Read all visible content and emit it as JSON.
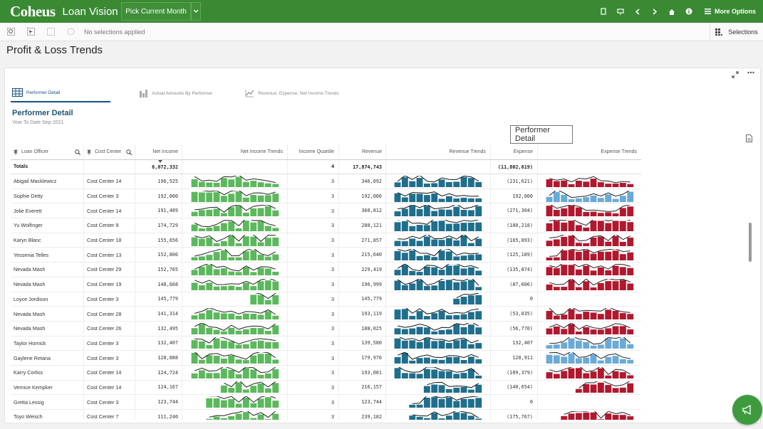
{
  "app": {
    "logo": "Coheus",
    "name": "Loan Vision",
    "pick_button": "Pick Current Month",
    "more_options": "More Options"
  },
  "selections": {
    "status": "No selections applied",
    "label": "Selections"
  },
  "page": {
    "title": "Profit & Loss Trends"
  },
  "tabs": [
    {
      "label": "Performer Detail",
      "active": true
    },
    {
      "label": "Actual Amounts By Performer",
      "active": false
    },
    {
      "label": "Revenue, Expense, Net Income Trends",
      "active": false
    }
  ],
  "section": {
    "title": "Performer Detail",
    "subtitle": "Year To Date Sep-2021"
  },
  "tooltip": "Performer Detail",
  "columns": {
    "loan_officer": "Loan Officer",
    "cost_center": "Cost Center",
    "net_income": "Net Income",
    "net_income_trends": "Net Income Trends",
    "income_quartile": "Income Quartile",
    "revenue": "Revenue",
    "revenue_trends": "Revenue Trends",
    "expense": "Expense",
    "expense_trends": "Expense Trends"
  },
  "totals": {
    "label": "Totals",
    "net_income": "6,072,332",
    "quartile": "4",
    "revenue": "17,874,743",
    "expense": "(11,802,619)"
  },
  "colors": {
    "brand_green": "#3a8a34",
    "net_income_bar": "#5cb85c",
    "revenue_bar": "#1f6e8c",
    "expense_bar": "#b0182e",
    "expense_bar_alt": "#6aaad6"
  },
  "rows": [
    {
      "officer": "Abigail Macklewicz",
      "center": "Cost Center 14",
      "net_income": "196,525",
      "quartile": "3",
      "revenue": "346,092",
      "expense": "(231,621)"
    },
    {
      "officer": "Sophie Detty",
      "center": "Cost Center 3",
      "net_income": "192,000",
      "quartile": "3",
      "revenue": "192,000",
      "expense": "192,000"
    },
    {
      "officer": "Jolie Everett",
      "center": "Cost Center 14",
      "net_income": "191,489",
      "quartile": "3",
      "revenue": "360,812",
      "expense": "(271,304)"
    },
    {
      "officer": "Yu Wolfinger",
      "center": "Cost Center 9",
      "net_income": "174,729",
      "quartile": "3",
      "revenue": "288,121",
      "expense": "(180,218)"
    },
    {
      "officer": "Karyn Blanc",
      "center": "Cost Center 18",
      "net_income": "155,656",
      "quartile": "3",
      "revenue": "271,857",
      "expense": "(165,893)"
    },
    {
      "officer": "Yessenia Telles",
      "center": "Cost Center 13",
      "net_income": "152,806",
      "quartile": "3",
      "revenue": "215,640",
      "expense": "(125,189)"
    },
    {
      "officer": "Nevada Mash",
      "center": "Cost Center 29",
      "net_income": "152,765",
      "quartile": "3",
      "revenue": "229,419",
      "expense": "(135,874)"
    },
    {
      "officer": "Nevada Mash",
      "center": "Cost Center 19",
      "net_income": "148,668",
      "quartile": "3",
      "revenue": "196,999",
      "expense": "(87,606)"
    },
    {
      "officer": "Loyce Jordison",
      "center": "Cost Center 3",
      "net_income": "145,779",
      "quartile": "3",
      "revenue": "145,779",
      "expense": "0"
    },
    {
      "officer": "Nevada Mash",
      "center": "Cost Center 28",
      "net_income": "141,314",
      "quartile": "3",
      "revenue": "193,119",
      "expense": "(53,835)"
    },
    {
      "officer": "Nevada Mash",
      "center": "Cost Center 26",
      "net_income": "132,495",
      "quartile": "3",
      "revenue": "188,025",
      "expense": "(56,770)"
    },
    {
      "officer": "Taylor Hornick",
      "center": "Cost Center 3",
      "net_income": "132,407",
      "quartile": "3",
      "revenue": "139,580",
      "expense": "132,407"
    },
    {
      "officer": "Gaylene Retana",
      "center": "Cost Center 3",
      "net_income": "128,888",
      "quartile": "3",
      "revenue": "179,976",
      "expense": "128,911"
    },
    {
      "officer": "Karry Corliss",
      "center": "Cost Center 14",
      "net_income": "124,724",
      "quartile": "3",
      "revenue": "193,001",
      "expense": "(109,379)"
    },
    {
      "officer": "Vernice Kempker",
      "center": "Cost Center 14",
      "net_income": "124,167",
      "quartile": "3",
      "revenue": "216,157",
      "expense": "(140,654)"
    },
    {
      "officer": "Gretta Lessig",
      "center": "Cost Center 3",
      "net_income": "123,744",
      "quartile": "3",
      "revenue": "123,744",
      "expense": "0"
    },
    {
      "officer": "Toyo Weisch",
      "center": "Cost Center 7",
      "net_income": "111,240",
      "quartile": "3",
      "revenue": "239,182",
      "expense": "(175,767)"
    }
  ]
}
